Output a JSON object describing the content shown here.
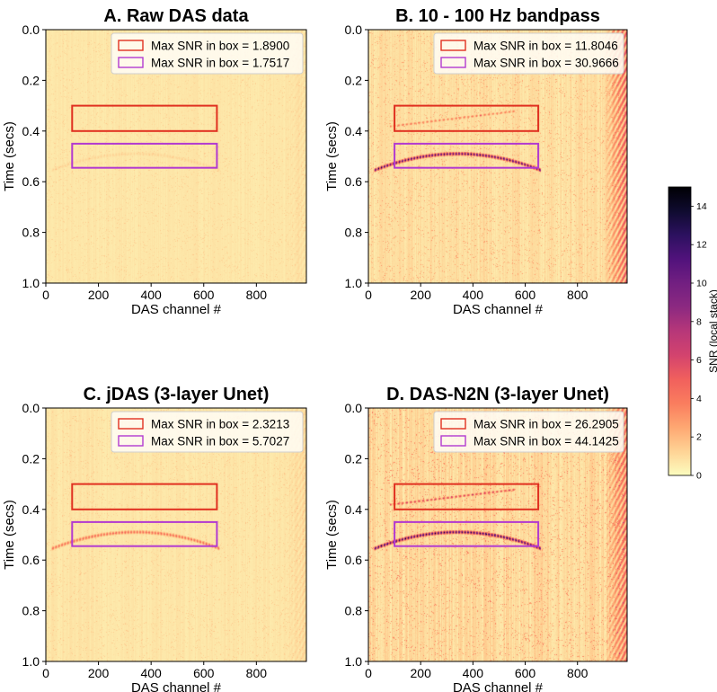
{
  "chart_data": [
    {
      "type": "heatmap",
      "panel": "A",
      "title": "A. Raw DAS data",
      "xlabel": "DAS channel #",
      "ylabel": "Time (secs)",
      "xlim": [
        0,
        990
      ],
      "ylim": [
        1.0,
        0.0
      ],
      "x_ticks": [
        "0",
        "200",
        "400",
        "600",
        "800"
      ],
      "y_ticks": [
        "0.0",
        "0.2",
        "0.4",
        "0.6",
        "0.8",
        "1.0"
      ],
      "boxes": [
        {
          "color": "#e03020",
          "x_range": [
            100,
            650
          ],
          "t_range": [
            0.3,
            0.4
          ],
          "label": "Max SNR in box = 1.8900"
        },
        {
          "color": "#b23ad0",
          "x_range": [
            100,
            650
          ],
          "t_range": [
            0.45,
            0.545
          ],
          "label": "Max SNR in box = 1.7517"
        }
      ],
      "noise_level": 0.12,
      "signal": {
        "arrival_strength": 0.05,
        "upper_strength": 0.0,
        "right_edge_strength": 0.05
      }
    },
    {
      "type": "heatmap",
      "panel": "B",
      "title": "B. 10 - 100 Hz bandpass",
      "xlabel": "DAS channel #",
      "ylabel": "Time (secs)",
      "xlim": [
        0,
        990
      ],
      "ylim": [
        1.0,
        0.0
      ],
      "x_ticks": [
        "0",
        "200",
        "400",
        "600",
        "800"
      ],
      "y_ticks": [
        "0.0",
        "0.2",
        "0.4",
        "0.6",
        "0.8",
        "1.0"
      ],
      "boxes": [
        {
          "color": "#e03020",
          "x_range": [
            100,
            650
          ],
          "t_range": [
            0.3,
            0.4
          ],
          "label": "Max SNR in box = 11.8046"
        },
        {
          "color": "#b23ad0",
          "x_range": [
            100,
            650
          ],
          "t_range": [
            0.45,
            0.545
          ],
          "label": "Max SNR in box = 30.9666"
        }
      ],
      "noise_level": 0.3,
      "signal": {
        "arrival_strength": 0.95,
        "upper_strength": 0.35,
        "right_edge_strength": 0.65
      }
    },
    {
      "type": "heatmap",
      "panel": "C",
      "title": "C. jDAS (3-layer Unet)",
      "xlabel": "DAS channel #",
      "ylabel": "Time (secs)",
      "xlim": [
        0,
        990
      ],
      "ylim": [
        1.0,
        0.0
      ],
      "x_ticks": [
        "0",
        "200",
        "400",
        "600",
        "800"
      ],
      "y_ticks": [
        "0.0",
        "0.2",
        "0.4",
        "0.6",
        "0.8",
        "1.0"
      ],
      "boxes": [
        {
          "color": "#e03020",
          "x_range": [
            100,
            650
          ],
          "t_range": [
            0.3,
            0.4
          ],
          "label": "Max SNR in box = 2.3213"
        },
        {
          "color": "#b23ad0",
          "x_range": [
            100,
            650
          ],
          "t_range": [
            0.45,
            0.545
          ],
          "label": "Max SNR in box = 5.7027"
        }
      ],
      "noise_level": 0.14,
      "signal": {
        "arrival_strength": 0.35,
        "upper_strength": 0.0,
        "right_edge_strength": 0.08
      }
    },
    {
      "type": "heatmap",
      "panel": "D",
      "title": "D. DAS-N2N (3-layer Unet)",
      "xlabel": "DAS channel #",
      "ylabel": "Time (secs)",
      "xlim": [
        0,
        990
      ],
      "ylim": [
        1.0,
        0.0
      ],
      "x_ticks": [
        "0",
        "200",
        "400",
        "600",
        "800"
      ],
      "y_ticks": [
        "0.0",
        "0.2",
        "0.4",
        "0.6",
        "0.8",
        "1.0"
      ],
      "boxes": [
        {
          "color": "#e03020",
          "x_range": [
            100,
            650
          ],
          "t_range": [
            0.3,
            0.4
          ],
          "label": "Max SNR in box = 26.2905"
        },
        {
          "color": "#b23ad0",
          "x_range": [
            100,
            650
          ],
          "t_range": [
            0.45,
            0.545
          ],
          "label": "Max SNR in box = 44.1425"
        }
      ],
      "noise_level": 0.42,
      "signal": {
        "arrival_strength": 1.0,
        "upper_strength": 0.6,
        "right_edge_strength": 0.55
      }
    }
  ],
  "colorbar": {
    "label": "SNR (local stack)",
    "range": [
      0,
      15
    ],
    "ticks": [
      "0",
      "2",
      "4",
      "6",
      "8",
      "10",
      "12",
      "14"
    ],
    "colormap": "magma_r",
    "stops": [
      "#fcfdbf",
      "#fed395",
      "#fea772",
      "#fa7d5e",
      "#f1605d",
      "#d3436e",
      "#b73779",
      "#8c2981",
      "#721f81",
      "#51127c",
      "#2c115f",
      "#0f0b2f",
      "#000004"
    ]
  }
}
